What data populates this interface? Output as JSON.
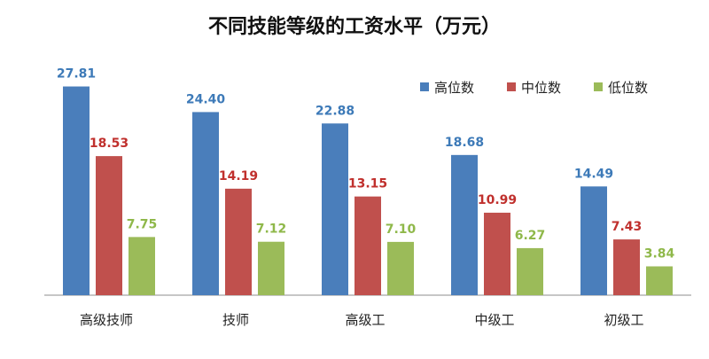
{
  "chart_data": {
    "type": "bar",
    "title": "不同技能等级的工资水平（万元）",
    "categories": [
      "高级技师",
      "技师",
      "高级工",
      "中级工",
      "初级工"
    ],
    "series": [
      {
        "name": "高位数",
        "values": [
          27.81,
          24.4,
          22.88,
          18.68,
          14.49
        ],
        "color": "#4a7ebb",
        "label_color": "#3d7ab8"
      },
      {
        "name": "中位数",
        "values": [
          18.53,
          14.19,
          13.15,
          10.99,
          7.43
        ],
        "color": "#c0504d",
        "label_color": "#c0302d"
      },
      {
        "name": "低位数",
        "values": [
          7.75,
          7.12,
          7.1,
          6.27,
          3.84
        ],
        "color": "#9bbb59",
        "label_color": "#8fb84a"
      }
    ],
    "value_labels": [
      [
        "27.81",
        "24.40",
        "22.88",
        "18.68",
        "14.49"
      ],
      [
        "18.53",
        "14.19",
        "13.15",
        "10.99",
        "7.43"
      ],
      [
        "7.75",
        "7.12",
        "7.10",
        "6.27",
        "3.84"
      ]
    ],
    "ylim": [
      0,
      30
    ],
    "grid": false,
    "legend_position": "top-right"
  }
}
